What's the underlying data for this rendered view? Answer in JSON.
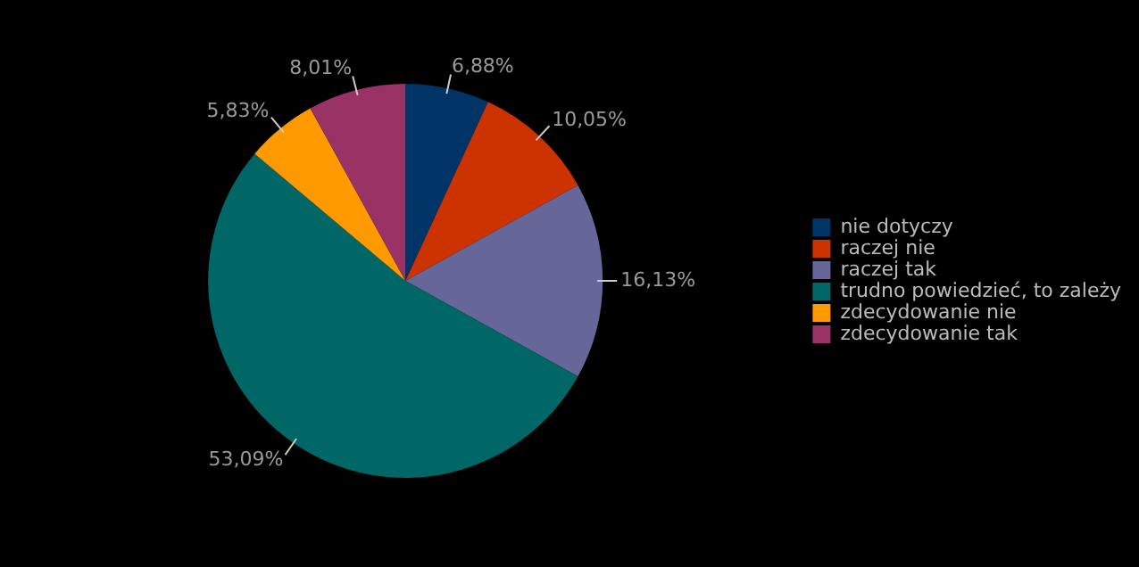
{
  "chart_data": {
    "type": "pie",
    "categories": [
      "nie dotyczy",
      "raczej nie",
      "raczej tak",
      "trudno powiedzieć, to zależy",
      "zdecydowanie nie",
      "zdecydowanie tak"
    ],
    "values": [
      6.88,
      10.05,
      16.13,
      53.09,
      5.83,
      8.01
    ],
    "colors": [
      "#003366",
      "#cc3300",
      "#666699",
      "#006666",
      "#ff9900",
      "#993366"
    ],
    "value_labels": [
      "6,88%",
      "10,05%",
      "16,13%",
      "53,09%",
      "5,83%",
      "8,01%"
    ],
    "legend": "right"
  }
}
